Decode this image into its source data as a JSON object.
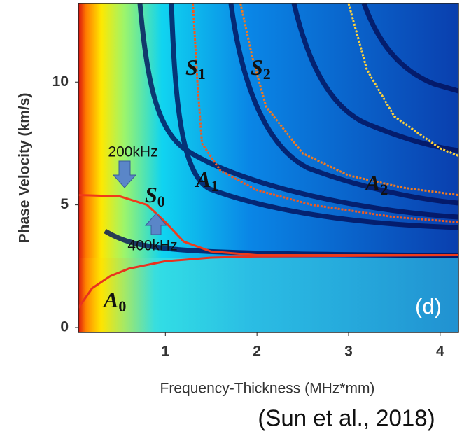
{
  "chart_data": {
    "type": "heatmap",
    "x_label": "Frequency-Thickness (MHz*mm)",
    "y_label": "Phase Velocity (km/s)",
    "xlim": [
      0.05,
      4.2
    ],
    "ylim": [
      -0.2,
      13.2
    ],
    "xticks": [
      1,
      2,
      3,
      4
    ],
    "yticks": [
      0,
      5,
      10
    ],
    "series": [
      {
        "color": "#e8321e",
        "x": [
          0.05,
          0.2,
          0.4,
          0.6,
          1.0,
          1.5,
          2.0,
          4.2
        ],
        "values": [
          0.8,
          1.6,
          2.1,
          2.4,
          2.7,
          2.85,
          2.9,
          2.95
        ]
      },
      {
        "color": "#f03a1a",
        "x": [
          0.05,
          0.5,
          0.8,
          1.0,
          1.2,
          1.5,
          2.0,
          4.2
        ],
        "values": [
          5.4,
          5.35,
          5.0,
          4.3,
          3.5,
          3.1,
          2.95,
          2.95
        ]
      },
      {
        "color": "#f05a20",
        "x": [
          1.3,
          1.35,
          1.4,
          1.6,
          2.0,
          2.6,
          3.5,
          4.2
        ],
        "values": [
          13.2,
          10,
          7.5,
          6.4,
          5.6,
          5.0,
          4.5,
          4.3
        ]
      },
      {
        "color": "#f07a20",
        "x": [
          1.82,
          1.95,
          2.1,
          2.5,
          3.0,
          3.6,
          4.2
        ],
        "values": [
          13.2,
          11,
          9,
          7.1,
          6.2,
          5.7,
          5.4
        ]
      },
      {
        "color": "#ffd23a",
        "x": [
          3.0,
          3.2,
          3.5,
          4.0,
          4.2
        ],
        "values": [
          13.2,
          10.5,
          8.6,
          7.3,
          7.0
        ]
      }
    ],
    "labels": [
      {
        "base": "S",
        "sub": "1"
      },
      {
        "base": "S",
        "sub": "2"
      },
      {
        "base": "A",
        "sub": "1"
      },
      {
        "base": "A",
        "sub": "2"
      },
      {
        "base": "S",
        "sub": "0"
      },
      {
        "base": "A",
        "sub": "0"
      }
    ],
    "annotations": [
      "200kHz",
      "400kHz"
    ],
    "panel": "(d)",
    "caption": "(Sun et al., 2018)"
  }
}
